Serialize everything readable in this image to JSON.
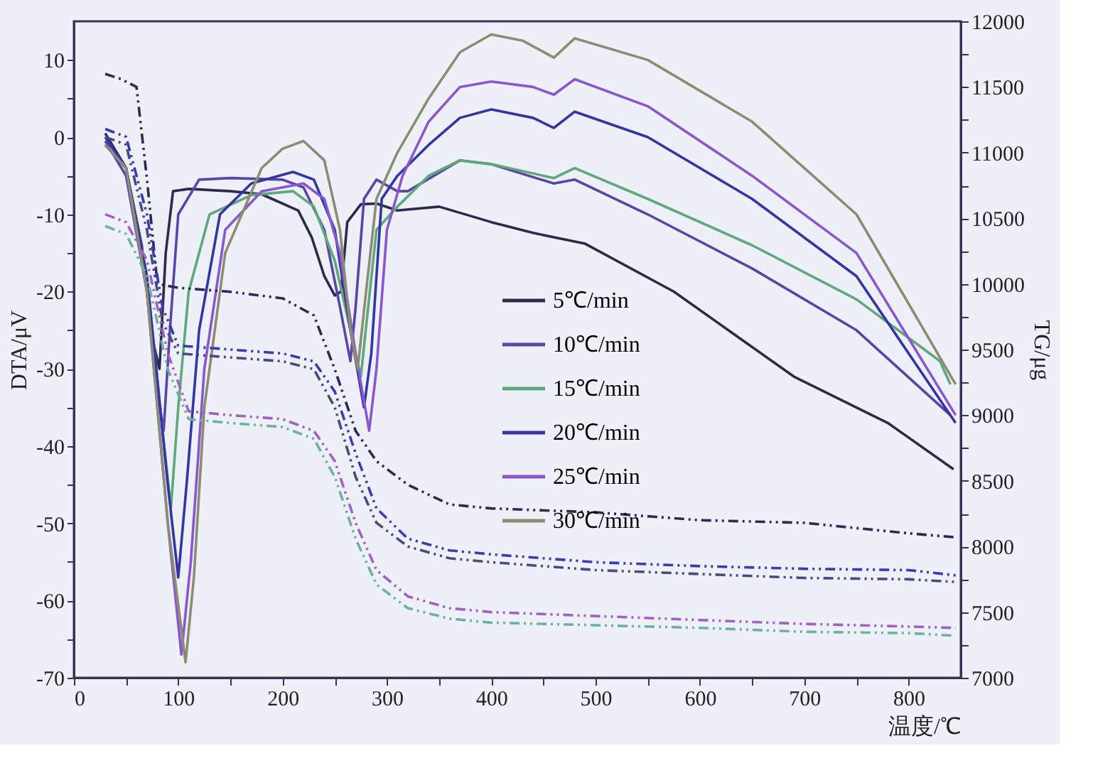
{
  "chart_data": {
    "type": "line",
    "xlabel": "温度/℃",
    "ylabel": "DTA/μV",
    "y2label": "TG/μg",
    "xlim": [
      0,
      850
    ],
    "ylim": [
      -70,
      15
    ],
    "y2lim": [
      7000,
      12000
    ],
    "xticks": [
      0,
      {
        "value": 50,
        "label": null
      },
      100,
      {
        "value": 150,
        "label": null
      },
      200,
      {
        "value": 250,
        "label": null
      },
      300,
      {
        "value": 350,
        "label": null
      },
      400,
      {
        "value": 450,
        "label": null
      },
      500,
      {
        "value": 550,
        "label": null
      },
      600,
      {
        "value": 650,
        "label": null
      },
      700,
      {
        "value": 750,
        "label": null
      },
      800
    ],
    "yticks": [
      -70,
      {
        "value": -65,
        "label": null
      },
      -60,
      {
        "value": -55,
        "label": null
      },
      -50,
      {
        "value": -45,
        "label": null
      },
      -40,
      {
        "value": -35,
        "label": null
      },
      -30,
      {
        "value": -25,
        "label": null
      },
      -20,
      {
        "value": -15,
        "label": null
      },
      -10,
      {
        "value": -5,
        "label": null
      },
      0,
      {
        "value": 5,
        "label": null
      },
      10
    ],
    "y2ticks": [
      7000,
      {
        "value": 7250,
        "label": null
      },
      7500,
      {
        "value": 7750,
        "label": null
      },
      8000,
      {
        "value": 8250,
        "label": null
      },
      8500,
      {
        "value": 8750,
        "label": null
      },
      9000,
      {
        "value": 9250,
        "label": null
      },
      9500,
      {
        "value": 9750,
        "label": null
      },
      10000,
      {
        "value": 10250,
        "label": null
      },
      10500,
      {
        "value": 10750,
        "label": null
      },
      11000,
      {
        "value": 11250,
        "label": null
      },
      11500,
      {
        "value": 11750,
        "label": null
      },
      12000
    ],
    "grid": false,
    "legend": "right",
    "marker": "none",
    "series": [
      {
        "name": "5℃/min",
        "color": "#2b2b4e",
        "line_style": "solid",
        "x": [
          30,
          50,
          65,
          75,
          82,
          88,
          95,
          110,
          150,
          180,
          215,
          228,
          240,
          250,
          256,
          262,
          275,
          290,
          310,
          350,
          400,
          440,
          490,
          575,
          690,
          780,
          843
        ],
        "values": [
          0.5,
          -4,
          -14,
          -26,
          -30,
          -15,
          -7,
          -6.7,
          -7,
          -7.4,
          -9.5,
          -13,
          -18,
          -20.5,
          -20,
          -11,
          -8.7,
          -8.6,
          -9.5,
          -9,
          -11,
          -12.4,
          -13.8,
          -20,
          -31,
          -37,
          -43
        ]
      },
      {
        "name": "10℃/min",
        "color": "#5a44a8",
        "line_style": "solid",
        "x": [
          30,
          50,
          70,
          80,
          86,
          92,
          100,
          120,
          150,
          200,
          220,
          240,
          255,
          265,
          270,
          278,
          290,
          310,
          320,
          370,
          400,
          460,
          480,
          550,
          650,
          750,
          840
        ],
        "values": [
          -0.5,
          -5,
          -20,
          -33,
          -38,
          -25,
          -10,
          -5.5,
          -5.3,
          -5.5,
          -6.5,
          -12,
          -22,
          -29,
          -22,
          -8,
          -5.5,
          -7,
          -7,
          -3,
          -3.5,
          -6,
          -5.5,
          -10,
          -17,
          -25,
          -36
        ]
      },
      {
        "name": "15℃/min",
        "color": "#5fa87c",
        "line_style": "solid",
        "x": [
          30,
          50,
          70,
          85,
          93,
          100,
          110,
          130,
          170,
          210,
          230,
          250,
          265,
          275,
          282,
          290,
          310,
          340,
          370,
          400,
          460,
          480,
          550,
          650,
          750,
          830,
          840
        ],
        "values": [
          -1,
          -4,
          -18,
          -38,
          -48,
          -35,
          -20,
          -10,
          -7.5,
          -7,
          -9,
          -16,
          -25,
          -31,
          -22,
          -12,
          -9,
          -5,
          -3,
          -3.5,
          -5.3,
          -4,
          -8,
          -14,
          -21,
          -29,
          -32
        ]
      },
      {
        "name": "20℃/min",
        "color": "#3434a4",
        "line_style": "solid",
        "x": [
          30,
          50,
          70,
          90,
          100,
          108,
          120,
          140,
          170,
          210,
          230,
          250,
          265,
          278,
          285,
          295,
          310,
          340,
          370,
          400,
          440,
          460,
          480,
          550,
          650,
          750,
          845
        ],
        "values": [
          0,
          -4,
          -18,
          -45,
          -57,
          -45,
          -25,
          -10,
          -6,
          -4.5,
          -5.5,
          -12,
          -25,
          -35,
          -28,
          -8,
          -5,
          -1,
          2.5,
          3.6,
          2.5,
          1.2,
          3.3,
          0,
          -8,
          -18,
          -37
        ]
      },
      {
        "name": "25℃/min",
        "color": "#8a56d0",
        "line_style": "solid",
        "x": [
          30,
          50,
          70,
          90,
          103,
          112,
          125,
          145,
          180,
          220,
          240,
          255,
          270,
          283,
          290,
          300,
          315,
          340,
          370,
          400,
          440,
          460,
          480,
          550,
          650,
          750,
          845
        ],
        "values": [
          -1,
          -4,
          -20,
          -50,
          -67,
          -55,
          -30,
          -12,
          -7,
          -6,
          -8,
          -15,
          -28,
          -38,
          -30,
          -12,
          -5,
          2,
          6.5,
          7.2,
          6.5,
          5.5,
          7.5,
          4,
          -5,
          -15,
          -36
        ]
      },
      {
        "name": "30℃/min",
        "color": "#8c8c72",
        "line_style": "solid",
        "x": [
          30,
          50,
          70,
          90,
          107,
          115,
          125,
          145,
          180,
          200,
          220,
          240,
          255,
          265,
          272,
          280,
          290,
          310,
          340,
          370,
          400,
          430,
          460,
          480,
          550,
          650,
          750,
          845
        ],
        "values": [
          -1,
          -4,
          -20,
          -50,
          -68,
          -57,
          -35,
          -15,
          -4,
          -1.5,
          -0.5,
          -3,
          -12,
          -25,
          -30,
          -20,
          -8,
          -2,
          5,
          11,
          13.3,
          12.5,
          10.3,
          12.8,
          10,
          2,
          -10,
          -32
        ]
      },
      {
        "color": "#2a2a58",
        "line_style": "dashed",
        "axis": "y2",
        "x": [
          30,
          45,
          60,
          70,
          80,
          100,
          150,
          200,
          230,
          250,
          270,
          290,
          320,
          360,
          400,
          500,
          600,
          700,
          800,
          845
        ],
        "values": [
          11600,
          11560,
          11500,
          10800,
          10000,
          9970,
          9940,
          9890,
          9760,
          9350,
          8880,
          8650,
          8470,
          8320,
          8290,
          8260,
          8200,
          8180,
          8100,
          8070
        ]
      },
      {
        "color": "#3a3ab4",
        "line_style": "dashed",
        "axis": "y2",
        "x": [
          30,
          50,
          70,
          85,
          100,
          150,
          200,
          230,
          250,
          270,
          290,
          320,
          360,
          400,
          500,
          600,
          700,
          800,
          845
        ],
        "values": [
          11180,
          11120,
          10530,
          9820,
          9530,
          9500,
          9470,
          9410,
          9180,
          8710,
          8290,
          8060,
          7970,
          7940,
          7880,
          7850,
          7830,
          7820,
          7780
        ]
      },
      {
        "color": "#4a4a82",
        "line_style": "dashed",
        "axis": "y2",
        "x": [
          30,
          50,
          70,
          85,
          100,
          150,
          200,
          230,
          250,
          270,
          290,
          320,
          360,
          400,
          500,
          600,
          700,
          800,
          845
        ],
        "values": [
          11120,
          11060,
          10410,
          9710,
          9470,
          9440,
          9410,
          9350,
          9060,
          8530,
          8180,
          8000,
          7910,
          7880,
          7820,
          7790,
          7760,
          7750,
          7730
        ]
      },
      {
        "color": "#a060c4",
        "line_style": "dashed",
        "axis": "y2",
        "x": [
          30,
          50,
          70,
          90,
          110,
          150,
          200,
          230,
          250,
          270,
          290,
          320,
          360,
          400,
          500,
          600,
          700,
          800,
          845
        ],
        "values": [
          10530,
          10470,
          10180,
          9470,
          9030,
          9000,
          8970,
          8880,
          8650,
          8180,
          7820,
          7620,
          7530,
          7500,
          7470,
          7440,
          7410,
          7390,
          7380
        ]
      },
      {
        "color": "#70b0a4",
        "line_style": "dashed",
        "axis": "y2",
        "x": [
          30,
          50,
          70,
          90,
          110,
          150,
          200,
          230,
          250,
          270,
          290,
          320,
          360,
          400,
          500,
          600,
          700,
          800,
          845
        ],
        "values": [
          10440,
          10380,
          10060,
          9350,
          8970,
          8940,
          8910,
          8820,
          8530,
          8060,
          7710,
          7530,
          7450,
          7420,
          7400,
          7380,
          7350,
          7340,
          7320
        ]
      }
    ]
  }
}
